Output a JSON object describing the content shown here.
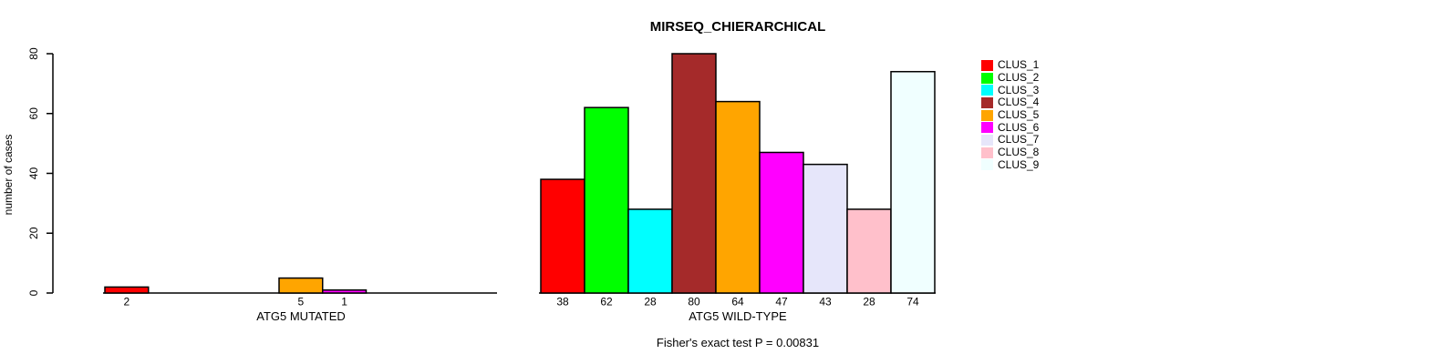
{
  "chart_data": {
    "type": "bar",
    "title": "MIRSEQ_CHIERARCHICAL",
    "ylabel": "number of cases",
    "xlabel": "",
    "annotation": "Fisher's exact test P = 0.00831",
    "ylim": [
      0,
      80
    ],
    "yticks": [
      0,
      20,
      40,
      60,
      80
    ],
    "grid": false,
    "legend_position": "right",
    "value_labels": "shown under each nonzero bar",
    "categories": [
      "ATG5 MUTATED",
      "ATG5 WILD-TYPE"
    ],
    "series": [
      {
        "name": "CLUS_1",
        "color": "#FF0000",
        "values": [
          2,
          38
        ]
      },
      {
        "name": "CLUS_2",
        "color": "#00FF00",
        "values": [
          0,
          62
        ]
      },
      {
        "name": "CLUS_3",
        "color": "#00FFFF",
        "values": [
          0,
          28
        ]
      },
      {
        "name": "CLUS_4",
        "color": "#A52A2A",
        "values": [
          0,
          80
        ]
      },
      {
        "name": "CLUS_5",
        "color": "#FFA500",
        "values": [
          5,
          64
        ]
      },
      {
        "name": "CLUS_6",
        "color": "#FF00FF",
        "values": [
          1,
          47
        ]
      },
      {
        "name": "CLUS_7",
        "color": "#E6E6FA",
        "values": [
          0,
          43
        ]
      },
      {
        "name": "CLUS_8",
        "color": "#FFC0CB",
        "values": [
          0,
          28
        ]
      },
      {
        "name": "CLUS_9",
        "color": "#F0FFFF",
        "values": [
          0,
          74
        ]
      }
    ],
    "axis_color": "#000000",
    "bar_border_color": "#000000"
  }
}
